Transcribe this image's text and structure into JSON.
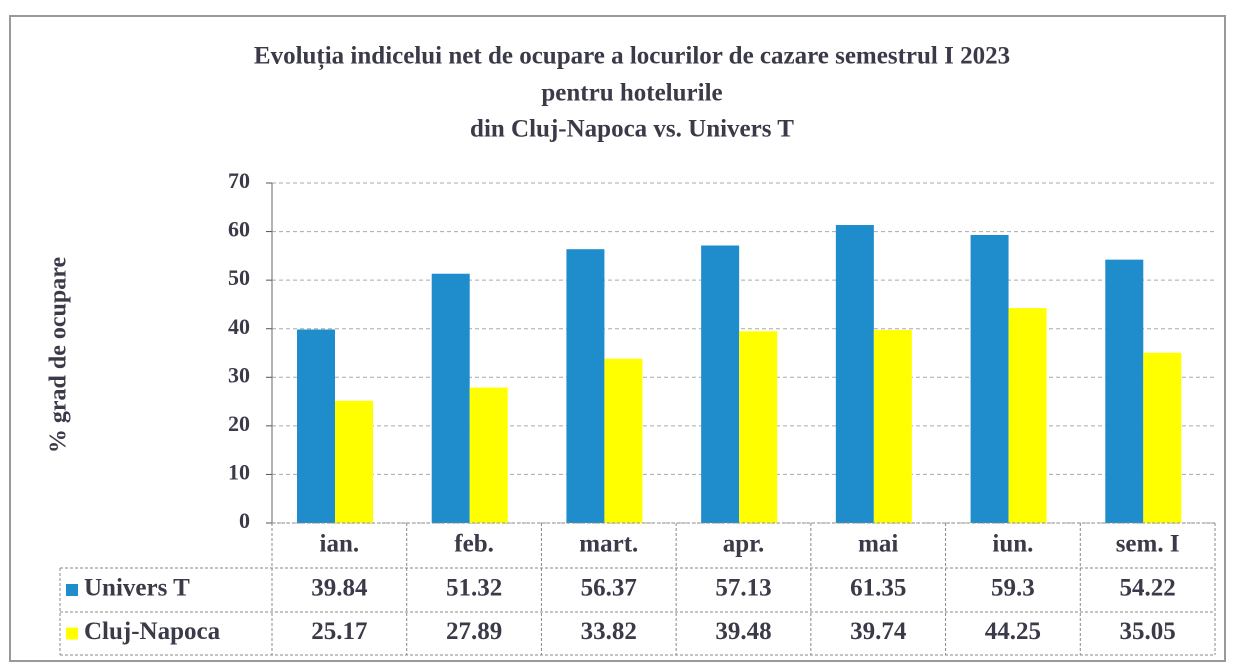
{
  "chart_data": {
    "type": "bar",
    "title": [
      "Evoluția indicelui net de ocupare a locurilor de cazare semestrul I 2023",
      "pentru hotelurile",
      "din Cluj-Napoca  vs.  Univers T"
    ],
    "y_label": "% grad de ocupare",
    "categories": [
      "ian.",
      "feb.",
      "mart.",
      "apr.",
      "mai",
      "iun.",
      "sem. I"
    ],
    "series": [
      {
        "name": "Univers T",
        "color": "#1f8dcc",
        "values": [
          39.84,
          51.32,
          56.37,
          57.13,
          61.35,
          59.3,
          54.22
        ]
      },
      {
        "name": "Cluj-Napoca",
        "color": "#ffff00",
        "values": [
          25.17,
          27.89,
          33.82,
          39.48,
          39.74,
          44.25,
          35.05
        ]
      }
    ],
    "ylim": [
      0,
      70
    ],
    "yticks": [
      0,
      10,
      20,
      30,
      40,
      50,
      60,
      70
    ],
    "grid": true
  }
}
